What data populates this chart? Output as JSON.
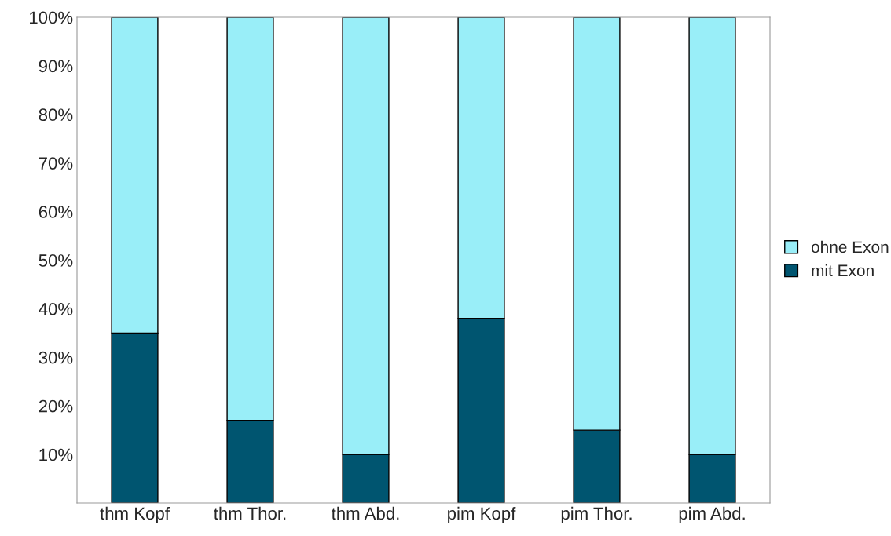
{
  "chart_data": {
    "type": "bar",
    "stacked": true,
    "categories": [
      "thm Kopf",
      "thm Thor.",
      "thm Abd.",
      "pim Kopf",
      "pim Thor.",
      "pim Abd."
    ],
    "series": [
      {
        "name": "mit Exon",
        "color": "#005570",
        "values": [
          35,
          17,
          10,
          38,
          15,
          10
        ]
      },
      {
        "name": "ohne Exon",
        "color": "#99eef8",
        "values": [
          65,
          83,
          90,
          62,
          85,
          90
        ]
      }
    ],
    "ylim": [
      0,
      100
    ],
    "yticks": [
      {
        "value": 0,
        "label": null
      },
      {
        "value": 10,
        "label": "10%"
      },
      {
        "value": 20,
        "label": "20%"
      },
      {
        "value": 30,
        "label": "30%"
      },
      {
        "value": 40,
        "label": "40%"
      },
      {
        "value": 50,
        "label": "50%"
      },
      {
        "value": 60,
        "label": "60%"
      },
      {
        "value": 70,
        "label": "70%"
      },
      {
        "value": 80,
        "label": "80%"
      },
      {
        "value": 90,
        "label": "90%"
      },
      {
        "value": 100,
        "label": "100%"
      }
    ],
    "grid": false,
    "legend": "right"
  }
}
